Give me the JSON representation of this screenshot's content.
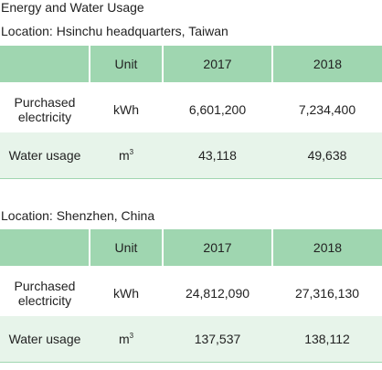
{
  "page": {
    "title": "Energy and Water Usage"
  },
  "tables": [
    {
      "location": "Location: Hsinchu headquarters, Taiwan",
      "header": {
        "item": "",
        "unit": "Unit",
        "y1": "2017",
        "y2": "2018"
      },
      "rows": [
        {
          "item": "Purchased electricity",
          "unit": "kWh",
          "unit_sup": "",
          "y1": "6,601,200",
          "y2": "7,234,400"
        },
        {
          "item": "Water usage",
          "unit": "m",
          "unit_sup": "3",
          "y1": "43,118",
          "y2": "49,638"
        }
      ]
    },
    {
      "location": "Location: Shenzhen, China",
      "header": {
        "item": "",
        "unit": "Unit",
        "y1": "2017",
        "y2": "2018"
      },
      "rows": [
        {
          "item": "Purchased electricity",
          "unit": "kWh",
          "unit_sup": "",
          "y1": "24,812,090",
          "y2": "27,316,130"
        },
        {
          "item": "Water usage",
          "unit": "m",
          "unit_sup": "3",
          "y1": "137,537",
          "y2": "138,112"
        }
      ]
    }
  ],
  "colors": {
    "header_fill": "#9fd6b0",
    "row_tint": "#e7f4ea"
  }
}
